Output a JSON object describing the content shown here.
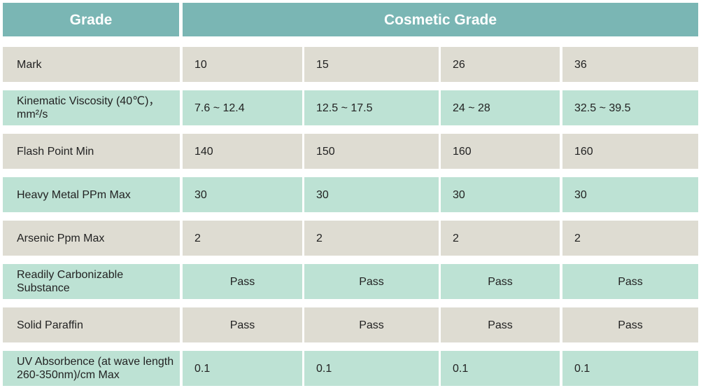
{
  "header": {
    "grade_label": "Grade",
    "cosmetic_label": "Cosmetic Grade"
  },
  "rows": [
    {
      "label": "Mark",
      "values": [
        "10",
        "15",
        "26",
        "36"
      ],
      "shade": "gray"
    },
    {
      "label": "Kinematic Viscosity (40℃)，mm²/s",
      "values": [
        "7.6 ~ 12.4",
        "12.5 ~ 17.5",
        "24 ~ 28",
        "32.5 ~ 39.5"
      ],
      "shade": "green"
    },
    {
      "label": "Flash Point Min",
      "values": [
        "140",
        "150",
        "160",
        "160"
      ],
      "shade": "gray"
    },
    {
      "label": "Heavy Metal PPm Max",
      "values": [
        "30",
        "30",
        "30",
        "30"
      ],
      "shade": "green"
    },
    {
      "label": "Arsenic Ppm Max",
      "values": [
        "2",
        "2",
        "2",
        "2"
      ],
      "shade": "gray"
    },
    {
      "label": "Readily Carbonizable Substance",
      "values": [
        "Pass",
        "Pass",
        "Pass",
        "Pass"
      ],
      "shade": "green"
    },
    {
      "label": "Solid Paraffin",
      "values": [
        "Pass",
        "Pass",
        "Pass",
        "Pass"
      ],
      "shade": "gray"
    },
    {
      "label": "UV Absorbence (at wave length 260-350nm)/cm Max",
      "values": [
        "0.1",
        "0.1",
        "0.1",
        "0.1"
      ],
      "shade": "green"
    }
  ],
  "colors": {
    "header": "#7ab6b4",
    "row_gray": "#dedcd2",
    "row_green": "#bde2d4"
  }
}
